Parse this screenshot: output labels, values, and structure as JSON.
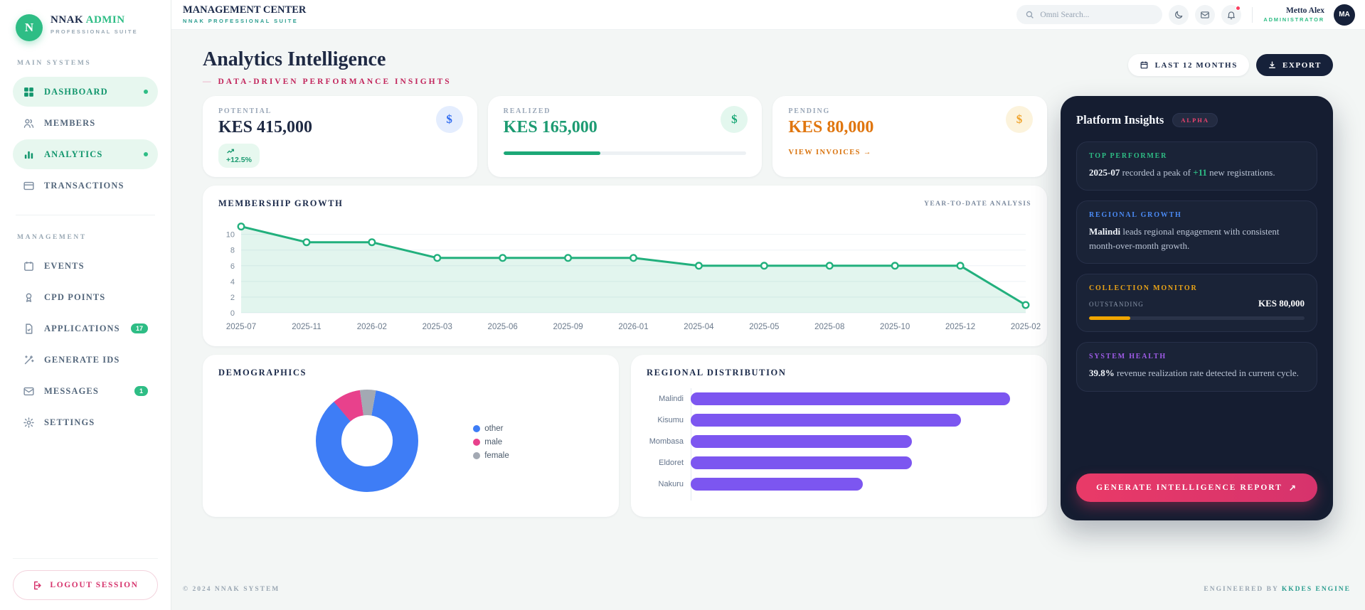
{
  "brand": {
    "logo_letter": "N",
    "name_primary": "NNAK",
    "name_accent": "ADMIN",
    "tagline": "PROFESSIONAL SUITE"
  },
  "sidebar": {
    "sections": [
      {
        "label": "MAIN SYSTEMS",
        "items": [
          {
            "label": "DASHBOARD",
            "icon": "grid-icon",
            "active": true,
            "dot": true
          },
          {
            "label": "MEMBERS",
            "icon": "users-icon",
            "active": false
          },
          {
            "label": "ANALYTICS",
            "icon": "bar-chart-icon",
            "active": true,
            "dot": true
          },
          {
            "label": "TRANSACTIONS",
            "icon": "credit-card-icon",
            "active": false
          }
        ]
      },
      {
        "label": "MANAGEMENT",
        "items": [
          {
            "label": "EVENTS",
            "icon": "calendar-icon",
            "active": false
          },
          {
            "label": "CPD POINTS",
            "icon": "medal-icon",
            "active": false
          },
          {
            "label": "APPLICATIONS",
            "icon": "file-check-icon",
            "active": false,
            "badge": "17"
          },
          {
            "label": "GENERATE IDS",
            "icon": "wand-icon",
            "active": false
          },
          {
            "label": "MESSAGES",
            "icon": "mail-icon",
            "active": false,
            "badge": "1"
          },
          {
            "label": "SETTINGS",
            "icon": "gear-icon",
            "active": false
          }
        ]
      }
    ],
    "logout_label": "LOGOUT SESSION"
  },
  "header": {
    "title": "MANAGEMENT CENTER",
    "subtitle": "NNAK PROFESSIONAL SUITE",
    "search_placeholder": "Omni Search...",
    "user_name": "Metto Alex",
    "user_role": "ADMINISTRATOR",
    "avatar_initials": "MA"
  },
  "page": {
    "title": "Analytics Intelligence",
    "subtitle_dash": "—",
    "subtitle": "DATA-DRIVEN PERFORMANCE INSIGHTS",
    "range_button": "LAST 12 MONTHS",
    "export_button": "EXPORT"
  },
  "stats": [
    {
      "label": "POTENTIAL",
      "value": "KES 415,000",
      "badge": "+12.5%",
      "accent": "#2f6bf0"
    },
    {
      "label": "REALIZED",
      "value": "KES 165,000",
      "progress_pct": 40,
      "accent": "#1ca877"
    },
    {
      "label": "PENDING",
      "value": "KES 80,000",
      "link": "VIEW INVOICES →",
      "accent": "#f0a32a"
    }
  ],
  "panels": {
    "growth": {
      "title": "MEMBERSHIP GROWTH",
      "right_label": "YEAR-TO-DATE ANALYSIS"
    },
    "demographics": {
      "title": "DEMOGRAPHICS"
    },
    "regional": {
      "title": "REGIONAL DISTRIBUTION"
    }
  },
  "chart_data": [
    {
      "type": "line",
      "title": "MEMBERSHIP GROWTH",
      "x": [
        "2025-07",
        "2025-11",
        "2026-02",
        "2025-03",
        "2025-06",
        "2025-09",
        "2026-01",
        "2025-04",
        "2025-05",
        "2025-08",
        "2025-10",
        "2025-12",
        "2025-02"
      ],
      "values": [
        11,
        9,
        9,
        7,
        7,
        7,
        7,
        6,
        6,
        6,
        6,
        6,
        1
      ],
      "yticks": [
        0,
        2,
        4,
        6,
        8,
        10
      ],
      "ylim": [
        0,
        11.6
      ],
      "grid": true,
      "line_color": "#22b07d",
      "fill_color": "rgba(34,176,125,0.13)"
    },
    {
      "type": "pie",
      "donut": true,
      "title": "DEMOGRAPHICS",
      "labels": [
        "other",
        "male",
        "female"
      ],
      "values": [
        86,
        9,
        5
      ],
      "colors": [
        "#3e7df6",
        "#e8418c",
        "#a3a9b3"
      ],
      "legend_position": "right"
    },
    {
      "type": "bar",
      "orientation": "horizontal",
      "title": "REGIONAL DISTRIBUTION",
      "categories": [
        "Malindi",
        "Kisumu",
        "Mombasa",
        "Eldoret",
        "Nakuru"
      ],
      "values": [
        13,
        11,
        9,
        9,
        7
      ],
      "xlim": [
        0,
        13.7
      ],
      "bar_color": "#7c56f0"
    }
  ],
  "insights": {
    "title": "Platform Insights",
    "badge": "ALPHA",
    "cards": [
      {
        "label": "TOP PERFORMER",
        "accent": "#2ebd85",
        "segments": [
          {
            "text": "2025-07",
            "style": "bold"
          },
          {
            "text": " recorded a peak of ",
            "style": ""
          },
          {
            "text": "+11",
            "style": "accent"
          },
          {
            "text": " new registrations.",
            "style": ""
          }
        ]
      },
      {
        "label": "REGIONAL GROWTH",
        "accent": "#4b8bf5",
        "segments": [
          {
            "text": "Malindi",
            "style": "bold"
          },
          {
            "text": " leads regional engagement with consistent month-over-month growth.",
            "style": ""
          }
        ]
      },
      {
        "label": "COLLECTION MONITOR",
        "accent": "#eba417",
        "progress_label": "OUTSTANDING",
        "progress_value": "KES 80,000",
        "progress_pct": 19.3,
        "progress_color": "#f0a500"
      },
      {
        "label": "SYSTEM HEALTH",
        "accent": "#a05ce8",
        "segments": [
          {
            "text": "39.8%",
            "style": "bold"
          },
          {
            "text": " revenue realization rate detected in current cycle.",
            "style": ""
          }
        ]
      }
    ],
    "generate_button": "GENERATE INTELLIGENCE REPORT",
    "generate_button_arrow": "↗"
  },
  "footer": {
    "left": "© 2024 NNAK SYSTEM",
    "right_prefix": "ENGINEERED BY",
    "right_brand": "KKDES ENGINE"
  }
}
